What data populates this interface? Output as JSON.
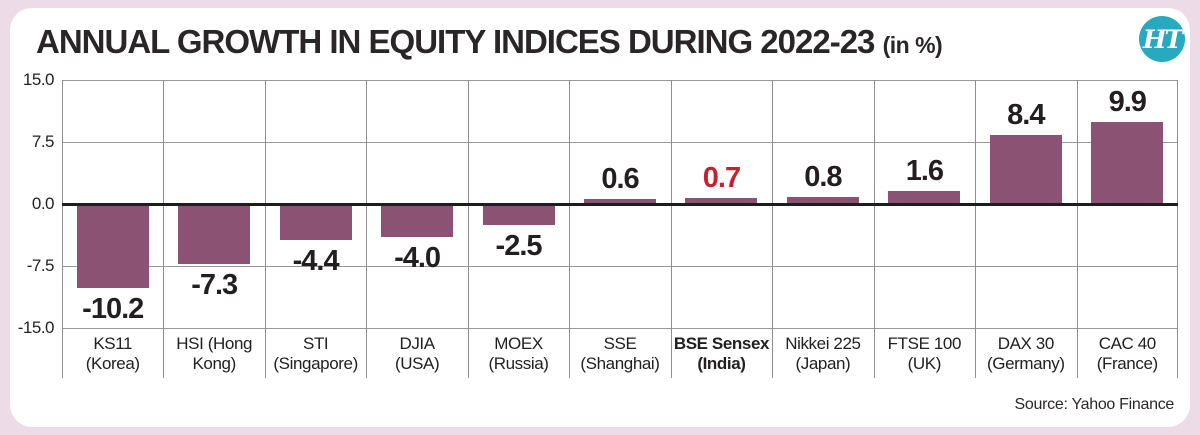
{
  "header": {
    "title": "ANNUAL GROWTH IN EQUITY INDICES DURING 2022-23",
    "title_suffix": "(in %)",
    "logo_text": "HT"
  },
  "footer": {
    "source": "Source: Yahoo Finance"
  },
  "chart_data": {
    "type": "bar",
    "title": "ANNUAL GROWTH IN EQUITY INDICES DURING 2022-23 (in %)",
    "unit": "percent",
    "categories": [
      "KS11 (Korea)",
      "HSI (Hong Kong)",
      "STI (Singapore)",
      "DJIA (USA)",
      "MOEX (Russia)",
      "SSE (Shanghai)",
      "BSE Sensex (India)",
      "Nikkei 225 (Japan)",
      "FTSE 100 (UK)",
      "DAX 30 (Germany)",
      "CAC 40 (France)"
    ],
    "category_lines": [
      [
        "KS11",
        "(Korea)"
      ],
      [
        "HSI (Hong",
        "Kong)"
      ],
      [
        "STI",
        "(Singapore)"
      ],
      [
        "DJIA",
        "(USA)"
      ],
      [
        "MOEX",
        "(Russia)"
      ],
      [
        "SSE",
        "(Shanghai)"
      ],
      [
        "BSE Sensex",
        "(India)"
      ],
      [
        "Nikkei 225",
        "(Japan)"
      ],
      [
        "FTSE 100",
        "(UK)"
      ],
      [
        "DAX 30",
        "(Germany)"
      ],
      [
        "CAC 40",
        "(France)"
      ]
    ],
    "values": [
      -10.2,
      -7.3,
      -4.4,
      -4.0,
      -2.5,
      0.6,
      0.7,
      0.8,
      1.6,
      8.4,
      9.9
    ],
    "value_labels": [
      "-10.2",
      "-7.3",
      "-4.4",
      "-4.0",
      "-2.5",
      "0.6",
      "0.7",
      "0.8",
      "1.6",
      "8.4",
      "9.9"
    ],
    "highlight_index": 6,
    "bold_category_index": 6,
    "ylim": [
      -15,
      15
    ],
    "yticks": [
      15,
      7.5,
      0,
      -7.5,
      -15
    ],
    "ytick_labels": [
      "15.0",
      "7.5",
      "0.0",
      "-7.5",
      "-15.0"
    ],
    "grid": true,
    "legend": "none",
    "colors": {
      "bar": "#8b5273",
      "highlight_value": "#c9202e",
      "grid": "#999999",
      "zero_line": "#1d1d1b",
      "card_background": "#ffffff",
      "page_background": "#eddbe7",
      "logo_background": "#27a9bf"
    },
    "source": "Source: Yahoo Finance"
  }
}
